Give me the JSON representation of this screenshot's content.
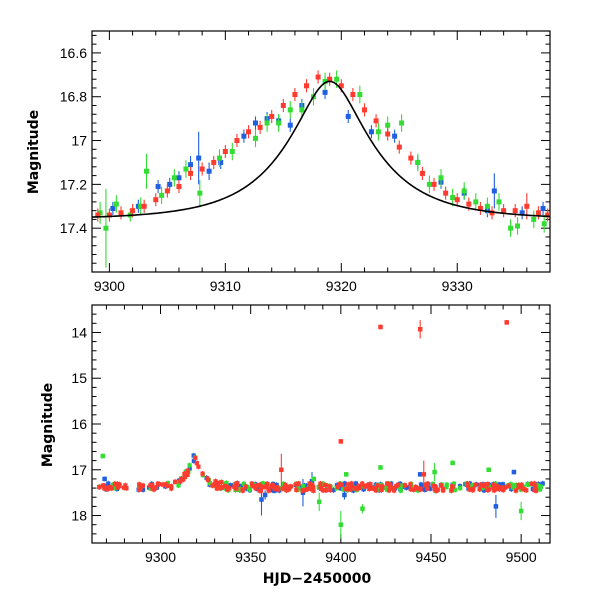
{
  "chart_data": [
    {
      "type": "scatter",
      "title": "",
      "xlabel": "",
      "ylabel": "Magnitude",
      "xlim": [
        9298.5,
        9338
      ],
      "ylim": [
        17.6,
        16.5
      ],
      "y_inverted": true,
      "x_ticks": [
        9300,
        9310,
        9320,
        9330
      ],
      "x_tick_labels": [
        "9300",
        "9310",
        "9320",
        "9330"
      ],
      "y_ticks": [
        16.6,
        16.8,
        17.0,
        17.2,
        17.4
      ],
      "y_tick_labels": [
        "16.6",
        "16.8",
        "17",
        "17.2",
        "17.4"
      ],
      "model_curve": {
        "type": "line",
        "color": "#000000",
        "baseline": 17.36,
        "peak_mag": 16.73,
        "t0": 9319.0,
        "tE": 7.0,
        "u0": 0.37
      },
      "series": [
        {
          "name": "blue",
          "color": "#1f5fe0",
          "points": [
            [
              9300.3,
              17.31,
              0.03
            ],
            [
              9302.5,
              17.3,
              0.03
            ],
            [
              9304.2,
              17.21,
              0.03
            ],
            [
              9305.2,
              17.2,
              0.03
            ],
            [
              9306.0,
              17.17,
              0.03
            ],
            [
              9307.0,
              17.11,
              0.04
            ],
            [
              9307.7,
              17.08,
              0.12
            ],
            [
              9308.6,
              17.14,
              0.04
            ],
            [
              9309.6,
              17.1,
              0.03
            ],
            [
              9311.6,
              16.98,
              0.03
            ],
            [
              9312.6,
              16.92,
              0.03
            ],
            [
              9313.6,
              16.9,
              0.03
            ],
            [
              9314.6,
              16.91,
              0.03
            ],
            [
              9315.6,
              16.93,
              0.03
            ],
            [
              9316.6,
              16.84,
              0.03
            ],
            [
              9318.6,
              16.78,
              0.03
            ],
            [
              9320.6,
              16.89,
              0.03
            ],
            [
              9322.6,
              16.96,
              0.03
            ],
            [
              9324.6,
              16.98,
              0.03
            ],
            [
              9326.6,
              17.1,
              0.03
            ],
            [
              9328.6,
              17.19,
              0.03
            ],
            [
              9330.6,
              17.24,
              0.03
            ],
            [
              9332.6,
              17.32,
              0.03
            ],
            [
              9333.2,
              17.23,
              0.08
            ],
            [
              9335.6,
              17.33,
              0.03
            ],
            [
              9337.4,
              17.31,
              0.03
            ]
          ]
        },
        {
          "name": "green",
          "color": "#33dd33",
          "points": [
            [
              9299.2,
              17.33,
              0.05
            ],
            [
              9299.7,
              17.4,
              0.18
            ],
            [
              9300.6,
              17.29,
              0.04
            ],
            [
              9301.8,
              17.34,
              0.03
            ],
            [
              9302.7,
              17.3,
              0.04
            ],
            [
              9303.2,
              17.14,
              0.08
            ],
            [
              9304.5,
              17.25,
              0.04
            ],
            [
              9305.6,
              17.17,
              0.04
            ],
            [
              9306.6,
              17.13,
              0.04
            ],
            [
              9307.8,
              17.24,
              0.06
            ],
            [
              9309.5,
              17.08,
              0.04
            ],
            [
              9310.6,
              17.05,
              0.04
            ],
            [
              9312.6,
              16.99,
              0.04
            ],
            [
              9313.6,
              16.92,
              0.04
            ],
            [
              9314.6,
              16.92,
              0.04
            ],
            [
              9315.6,
              16.86,
              0.04
            ],
            [
              9316.6,
              16.86,
              0.04
            ],
            [
              9317.6,
              16.8,
              0.04
            ],
            [
              9318.6,
              16.73,
              0.04
            ],
            [
              9319.6,
              16.72,
              0.04
            ],
            [
              9321.6,
              16.79,
              0.04
            ],
            [
              9323.2,
              16.96,
              0.04
            ],
            [
              9324.0,
              16.93,
              0.04
            ],
            [
              9325.2,
              16.92,
              0.04
            ],
            [
              9326.6,
              17.1,
              0.04
            ],
            [
              9327.6,
              17.2,
              0.04
            ],
            [
              9328.6,
              17.17,
              0.04
            ],
            [
              9329.6,
              17.26,
              0.04
            ],
            [
              9330.6,
              17.23,
              0.04
            ],
            [
              9331.6,
              17.28,
              0.04
            ],
            [
              9332.6,
              17.3,
              0.04
            ],
            [
              9333.6,
              17.28,
              0.04
            ],
            [
              9334.6,
              17.4,
              0.04
            ],
            [
              9335.2,
              17.39,
              0.04
            ],
            [
              9336.6,
              17.36,
              0.04
            ],
            [
              9337.5,
              17.38,
              0.04
            ]
          ]
        },
        {
          "name": "red",
          "color": "#ff3b2f",
          "points": [
            [
              9299.0,
              17.34,
              0.03
            ],
            [
              9300.0,
              17.34,
              0.03
            ],
            [
              9301.0,
              17.33,
              0.03
            ],
            [
              9302.0,
              17.32,
              0.03
            ],
            [
              9303.0,
              17.3,
              0.03
            ],
            [
              9304.0,
              17.27,
              0.03
            ],
            [
              9305.0,
              17.23,
              0.03
            ],
            [
              9306.0,
              17.21,
              0.03
            ],
            [
              9307.0,
              17.15,
              0.03
            ],
            [
              9308.0,
              17.13,
              0.03
            ],
            [
              9309.0,
              17.1,
              0.03
            ],
            [
              9310.0,
              17.05,
              0.03
            ],
            [
              9311.0,
              17.0,
              0.03
            ],
            [
              9312.0,
              16.96,
              0.03
            ],
            [
              9313.0,
              16.94,
              0.03
            ],
            [
              9314.0,
              16.89,
              0.03
            ],
            [
              9315.0,
              16.84,
              0.03
            ],
            [
              9316.0,
              16.79,
              0.03
            ],
            [
              9317.0,
              16.75,
              0.03
            ],
            [
              9318.0,
              16.71,
              0.03
            ],
            [
              9319.0,
              16.72,
              0.03
            ],
            [
              9320.0,
              16.75,
              0.03
            ],
            [
              9321.0,
              16.79,
              0.03
            ],
            [
              9322.0,
              16.86,
              0.03
            ],
            [
              9323.0,
              16.91,
              0.03
            ],
            [
              9324.0,
              16.97,
              0.03
            ],
            [
              9325.0,
              17.03,
              0.03
            ],
            [
              9326.0,
              17.08,
              0.03
            ],
            [
              9327.0,
              17.15,
              0.03
            ],
            [
              9328.0,
              17.2,
              0.03
            ],
            [
              9329.0,
              17.24,
              0.03
            ],
            [
              9330.0,
              17.27,
              0.03
            ],
            [
              9331.0,
              17.29,
              0.03
            ],
            [
              9332.0,
              17.31,
              0.03
            ],
            [
              9333.0,
              17.33,
              0.03
            ],
            [
              9334.0,
              17.32,
              0.03
            ],
            [
              9335.0,
              17.32,
              0.03
            ],
            [
              9336.0,
              17.3,
              0.06
            ],
            [
              9337.0,
              17.33,
              0.03
            ],
            [
              9337.8,
              17.34,
              0.03
            ]
          ]
        }
      ]
    },
    {
      "type": "scatter",
      "title": "",
      "xlabel": "HJD−2450000",
      "ylabel": "Magnitude",
      "xlim": [
        9262,
        9516
      ],
      "ylim": [
        18.6,
        13.4
      ],
      "y_inverted": true,
      "x_ticks": [
        9300,
        9350,
        9400,
        9450,
        9500
      ],
      "x_tick_labels": [
        "9300",
        "9350",
        "9400",
        "9450",
        "9500"
      ],
      "y_ticks": [
        14,
        15,
        16,
        17,
        18
      ],
      "y_tick_labels": [
        "14",
        "15",
        "16",
        "17",
        "18"
      ],
      "baseline_mag": 17.38,
      "event": {
        "t0": 9319.0,
        "peak_mag": 16.73,
        "tE": 7.0,
        "u0": 0.37
      },
      "series": [
        {
          "name": "blue",
          "color": "#1f5fe0",
          "outliers": [
            [
              9269,
              17.2,
              0.05
            ],
            [
              9356,
              17.65,
              0.35
            ],
            [
              9358,
              17.55,
              0.1
            ],
            [
              9379,
              17.5,
              0.3
            ],
            [
              9384,
              17.25,
              0.2
            ],
            [
              9402,
              17.55,
              0.1
            ],
            [
              9444,
              17.1,
              0.05
            ],
            [
              9486,
              17.8,
              0.25
            ],
            [
              9496,
              17.05,
              0.05
            ]
          ]
        },
        {
          "name": "green",
          "color": "#33dd33",
          "outliers": [
            [
              9268,
              16.7,
              0.05
            ],
            [
              9385,
              17.2,
              0.05
            ],
            [
              9388,
              17.7,
              0.2
            ],
            [
              9400,
              18.2,
              0.3
            ],
            [
              9403,
              17.1,
              0.05
            ],
            [
              9412,
              17.85,
              0.1
            ],
            [
              9422,
              16.95,
              0.05
            ],
            [
              9452,
              17.05,
              0.2
            ],
            [
              9462,
              16.85,
              0.05
            ],
            [
              9482,
              17.0,
              0.05
            ],
            [
              9500,
              17.9,
              0.2
            ]
          ]
        },
        {
          "name": "red",
          "color": "#ff3b2f",
          "outliers": [
            [
              9367,
              17.0,
              0.35
            ],
            [
              9400,
              16.38,
              0.05
            ],
            [
              9422,
              13.88,
              0.05
            ],
            [
              9444,
              13.93,
              0.2
            ],
            [
              9446,
              17.1,
              0.3
            ],
            [
              9492,
              13.78,
              0.05
            ]
          ]
        }
      ]
    }
  ]
}
